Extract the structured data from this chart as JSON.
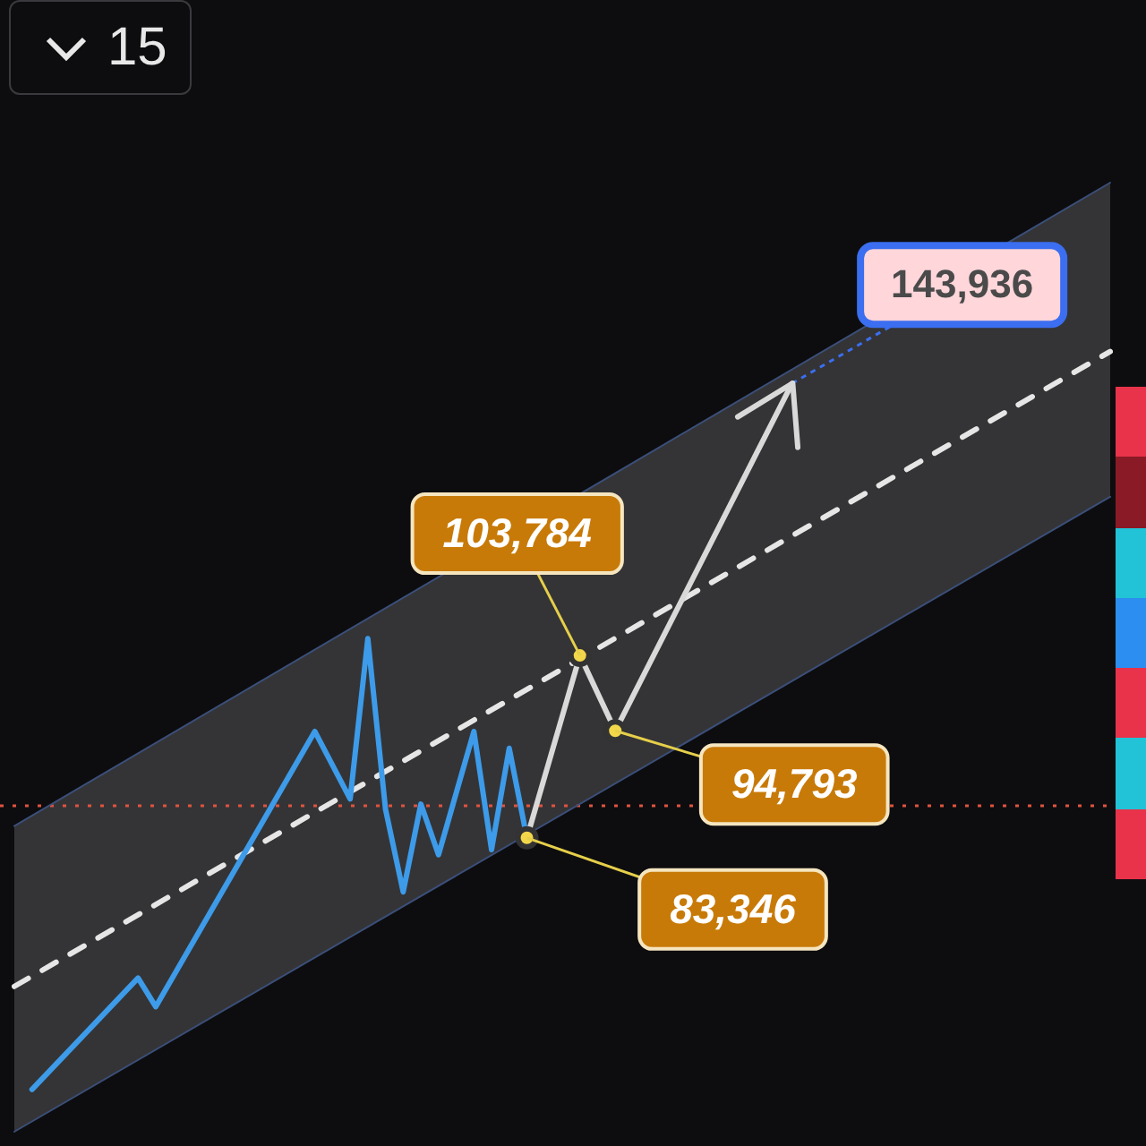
{
  "chart_data": {
    "type": "line",
    "log": "y",
    "legend": false,
    "annotations": [
      "15"
    ],
    "categories": [
      null,
      null,
      null,
      null,
      null,
      null,
      null,
      null,
      null,
      null,
      null,
      null,
      null,
      null,
      null,
      null,
      null,
      null,
      null,
      null,
      null,
      null,
      null,
      null,
      null,
      null,
      null,
      null,
      null,
      null,
      null,
      null,
      null,
      null,
      null,
      null,
      null,
      null,
      null,
      null,
      null,
      null,
      null,
      null,
      null,
      null,
      null,
      null,
      null,
      null,
      null,
      null,
      null,
      null,
      null,
      null,
      null,
      null,
      null,
      null,
      null,
      null,
      null
    ],
    "ref_lines": [
      {
        "axis": "y",
        "value": 86630,
        "color": "#e0533f",
        "line_style": "dotted"
      }
    ],
    "series": [
      {
        "type": "area",
        "color": "#3b4f7a",
        "values": [
          84540,
          null,
          null,
          null,
          null,
          null,
          null,
          null,
          null,
          null,
          null,
          null,
          null,
          null,
          null,
          null,
          null,
          null,
          null,
          null,
          null,
          null,
          null,
          null,
          null,
          null,
          null,
          null,
          null,
          null,
          null,
          null,
          null,
          null,
          null,
          null,
          null,
          null,
          null,
          null,
          null,
          null,
          null,
          null,
          null,
          null,
          null,
          null,
          null,
          null,
          null,
          null,
          null,
          null,
          null,
          null,
          null,
          null,
          null,
          null,
          null,
          null,
          183240
        ]
      },
      {
        "type": "line",
        "color": "#3b4f7a",
        "values": [
          58540,
          null,
          null,
          null,
          null,
          null,
          null,
          null,
          null,
          null,
          null,
          null,
          null,
          null,
          null,
          null,
          null,
          null,
          null,
          null,
          null,
          null,
          null,
          null,
          null,
          null,
          null,
          null,
          null,
          null,
          null,
          null,
          null,
          null,
          null,
          null,
          null,
          null,
          null,
          null,
          null,
          null,
          null,
          null,
          null,
          null,
          null,
          null,
          null,
          null,
          null,
          null,
          null,
          null,
          null,
          null,
          null,
          null,
          null,
          null,
          null,
          null,
          125610
        ]
      },
      {
        "type": "line",
        "color": "#e6e6e6",
        "line_style": "dashed",
        "values": [
          69710,
          null,
          null,
          null,
          null,
          null,
          null,
          null,
          null,
          null,
          null,
          null,
          null,
          null,
          null,
          null,
          null,
          null,
          null,
          null,
          null,
          null,
          null,
          null,
          null,
          null,
          null,
          null,
          null,
          null,
          null,
          null,
          null,
          null,
          null,
          null,
          null,
          null,
          null,
          null,
          null,
          null,
          null,
          null,
          null,
          null,
          null,
          null,
          null,
          null,
          null,
          null,
          null,
          null,
          null,
          null,
          null,
          null,
          null,
          null,
          null,
          null,
          149570
        ]
      },
      {
        "type": "line",
        "color": "#3d9be9",
        "values": [
          null,
          61590,
          null,
          null,
          null,
          null,
          null,
          70420,
          68030,
          null,
          null,
          null,
          null,
          null,
          null,
          null,
          null,
          94720,
          null,
          87330,
          105910,
          86270,
          78100,
          86800,
          81670,
          null,
          94720,
          82170,
          92820,
          83346,
          null,
          null,
          null,
          null,
          null,
          null,
          null,
          null,
          null,
          null,
          null,
          null,
          null,
          null,
          null,
          null,
          null,
          null,
          null,
          null,
          null,
          null,
          null,
          null,
          null,
          null,
          null,
          null,
          null,
          null,
          null,
          null,
          null
        ]
      },
      {
        "type": "line",
        "color": "#d9d9d9",
        "marker": "circle",
        "values": [
          null,
          null,
          null,
          null,
          null,
          null,
          null,
          null,
          null,
          null,
          null,
          null,
          null,
          null,
          null,
          null,
          null,
          null,
          null,
          null,
          null,
          null,
          null,
          null,
          null,
          null,
          null,
          null,
          null,
          83346,
          null,
          null,
          103784,
          null,
          94793,
          null,
          null,
          null,
          null,
          null,
          null,
          null,
          null,
          null,
          143936,
          null,
          null,
          null,
          null,
          null,
          null,
          null,
          null,
          null,
          null,
          null,
          null,
          null,
          null,
          null,
          null,
          null,
          null
        ],
        "value_labels": [
          null,
          null,
          null,
          null,
          null,
          null,
          null,
          null,
          null,
          null,
          null,
          null,
          null,
          null,
          null,
          null,
          null,
          null,
          null,
          null,
          null,
          null,
          null,
          null,
          null,
          null,
          null,
          null,
          null,
          "83,346",
          null,
          null,
          "103,784",
          null,
          "94,793",
          null,
          null,
          null,
          null,
          null,
          null,
          null,
          null,
          null,
          "143,936",
          null,
          null,
          null,
          null,
          null,
          null,
          null,
          null,
          null,
          null,
          null,
          null,
          null,
          null,
          null,
          null,
          null,
          null
        ]
      }
    ]
  }
}
